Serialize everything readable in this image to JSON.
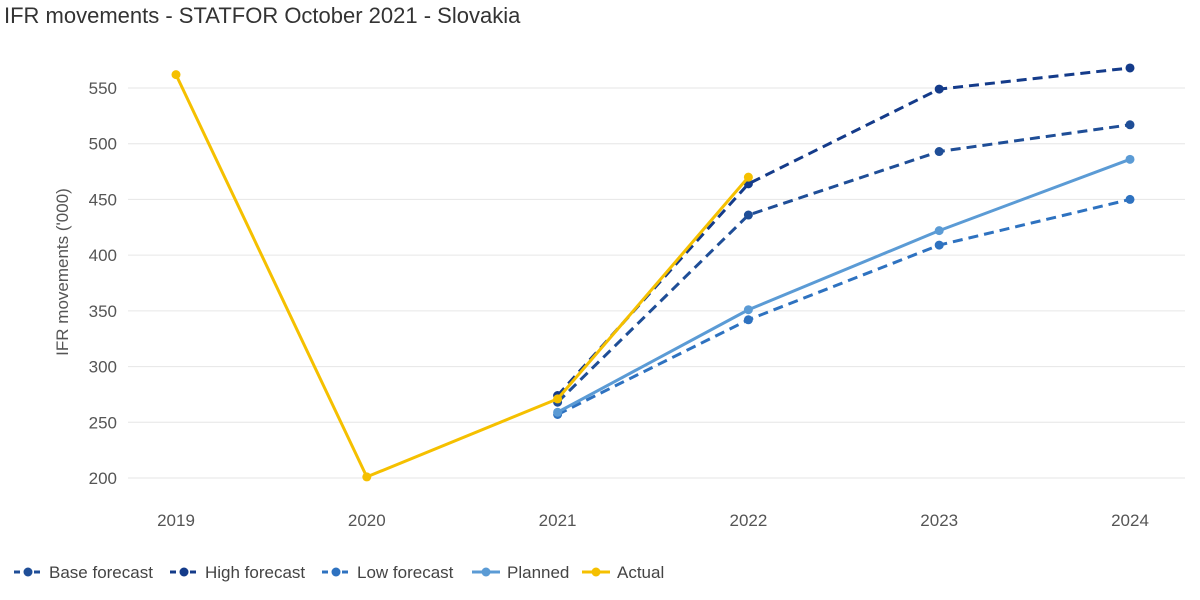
{
  "chart_data": {
    "type": "line",
    "title": "IFR movements - STATFOR October 2021 - Slovakia",
    "xlabel": "",
    "ylabel": "IFR movements ('000)",
    "x": [
      "2019",
      "2020",
      "2021",
      "2022",
      "2023",
      "2024"
    ],
    "ylim": [
      180,
      580
    ],
    "yticks": [
      200,
      250,
      300,
      350,
      400,
      450,
      500,
      550
    ],
    "grid": "horizontal",
    "legend": "bottom-left",
    "series": [
      {
        "name": "Base forecast",
        "color": "#1f4e97",
        "dash": true,
        "values": [
          null,
          null,
          268,
          436,
          493,
          517
        ]
      },
      {
        "name": "High forecast",
        "color": "#143b8a",
        "dash": true,
        "values": [
          null,
          null,
          274,
          464,
          549,
          568
        ]
      },
      {
        "name": "Low forecast",
        "color": "#2e72c0",
        "dash": true,
        "values": [
          null,
          null,
          257,
          342,
          409,
          450
        ]
      },
      {
        "name": "Planned",
        "color": "#5b9bd5",
        "dash": false,
        "values": [
          null,
          null,
          259,
          351,
          422,
          486
        ]
      },
      {
        "name": "Actual",
        "color": "#f5c000",
        "dash": false,
        "values": [
          562,
          201,
          271,
          470,
          null,
          null
        ]
      }
    ]
  }
}
